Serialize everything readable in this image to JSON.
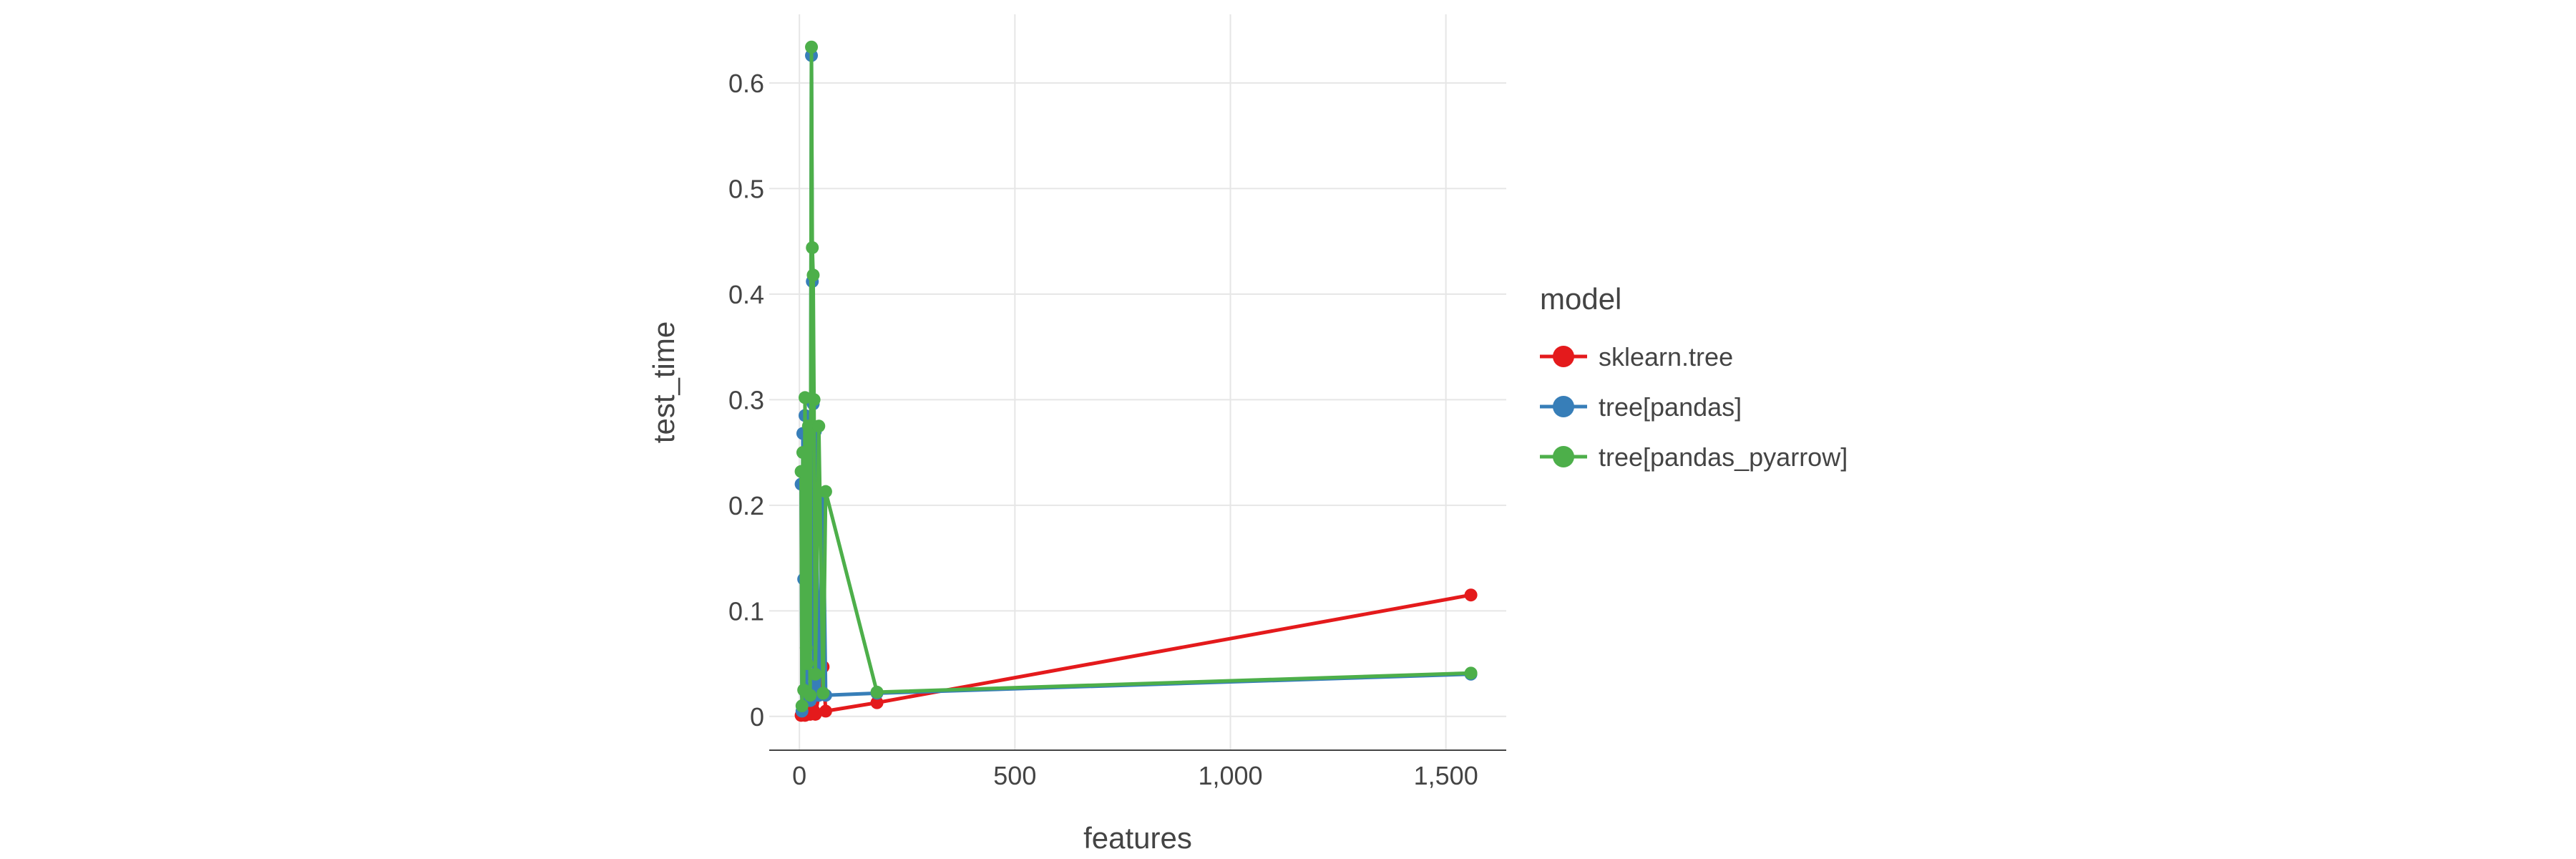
{
  "chart_data": {
    "type": "line",
    "xlabel": "features",
    "ylabel": "test_time",
    "xlim": [
      -70,
      1640
    ],
    "ylim": [
      -0.032,
      0.665
    ],
    "xticks": [
      0,
      500,
      1000,
      1500
    ],
    "xtick_labels": [
      "0",
      "500",
      "1,000",
      "1,500"
    ],
    "yticks": [
      0,
      0.1,
      0.2,
      0.3,
      0.4,
      0.5,
      0.6
    ],
    "ytick_labels": [
      "0",
      "0.1",
      "0.2",
      "0.3",
      "0.4",
      "0.5",
      "0.6"
    ],
    "grid": true,
    "legend": {
      "title": "model",
      "placement": "right"
    },
    "series": [
      {
        "name": "sklearn.tree",
        "color": "#e41a1c",
        "x": [
          4,
          8,
          11,
          13,
          21,
          25,
          30,
          34,
          37,
          45,
          55,
          61,
          180,
          1558
        ],
        "y": [
          0.001,
          0.002,
          0.003,
          0.001,
          0.004,
          0.002,
          0.003,
          0.005,
          0.002,
          0.02,
          0.047,
          0.005,
          0.013,
          0.115
        ]
      },
      {
        "name": "tree[pandas]",
        "color": "#377eb8",
        "x": [
          4,
          6,
          8,
          10,
          13,
          16,
          20,
          25,
          28,
          30,
          32,
          34,
          37,
          45,
          55,
          61,
          180,
          1558
        ],
        "y": [
          0.22,
          0.005,
          0.268,
          0.13,
          0.285,
          0.02,
          0.26,
          0.015,
          0.626,
          0.412,
          0.296,
          0.03,
          0.27,
          0.02,
          0.21,
          0.02,
          0.022,
          0.04
        ]
      },
      {
        "name": "tree[pandas_pyarrow]",
        "color": "#4daf4a",
        "x": [
          4,
          6,
          8,
          10,
          13,
          16,
          18,
          21,
          25,
          28,
          30,
          32,
          34,
          37,
          45,
          55,
          61,
          180,
          1558
        ],
        "y": [
          0.232,
          0.01,
          0.25,
          0.025,
          0.302,
          0.065,
          0.05,
          0.275,
          0.02,
          0.634,
          0.444,
          0.418,
          0.3,
          0.04,
          0.275,
          0.022,
          0.213,
          0.023,
          0.041
        ]
      }
    ]
  }
}
